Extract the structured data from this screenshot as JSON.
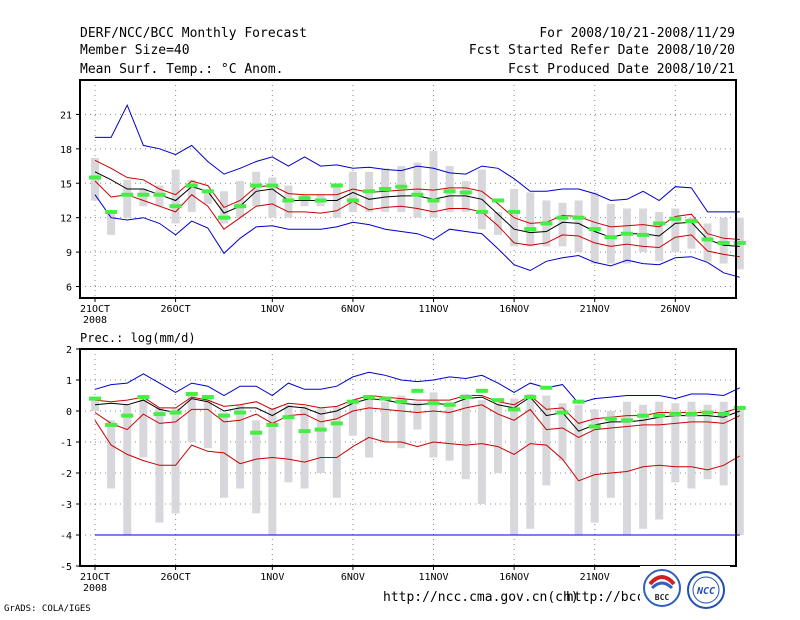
{
  "header": {
    "title": "DERF/NCC/BCC Monthly Forecast",
    "member_size": "Member Size=40",
    "variable": "Mean Surf. Temp.: °C Anom.",
    "period": "For 2008/10/21-2008/11/29",
    "started": "Fcst Started Refer Date 2008/10/20",
    "produced": "Fcst Produced Date 2008/10/21"
  },
  "footer": {
    "credit": "GrADS: COLA/IGES",
    "url1": "http://ncc.cma.gov.cn(ch)",
    "url2": "http://bcc.",
    "logo1_text": "BCC",
    "logo2_text": "NCC"
  },
  "colors": {
    "envelope": "#0000cc",
    "spread": "#cc0000",
    "mean": "#000000",
    "obs": "#44ee44",
    "bar": "#d8d8dc",
    "grid": "#888888"
  },
  "chart_data": [
    {
      "type": "line",
      "title": "Mean Surf. Temp.: °C Anom.",
      "xlabel": "",
      "ylabel": "",
      "x_ticks": [
        "21OCT",
        "26OCT",
        "1NOV",
        "6NOV",
        "11NOV",
        "16NOV",
        "21NOV",
        "26NOV"
      ],
      "x_tick_days": [
        0,
        5,
        11,
        16,
        21,
        26,
        31,
        36
      ],
      "x_sublabel": "2008",
      "ylim": [
        5,
        24
      ],
      "y_ticks": [
        6,
        9,
        12,
        15,
        18,
        21
      ],
      "grid": true,
      "series": [
        {
          "name": "max",
          "color": "#0000cc",
          "values": [
            19,
            19,
            21.8,
            18.3,
            18,
            17.5,
            18.3,
            16.9,
            15.8,
            16.3,
            16.9,
            17.3,
            16.5,
            17.3,
            16.5,
            16.6,
            16.3,
            16.4,
            16.2,
            16.1,
            16.5,
            16.3,
            15.9,
            15.8,
            16.5,
            16.3,
            15.4,
            14.3,
            14.3,
            14.5,
            14.5,
            14.1,
            13.5,
            13.6,
            14.3,
            13.5,
            14.7,
            14.6,
            12.5,
            12.5,
            12.5
          ]
        },
        {
          "name": "upper",
          "color": "#cc0000",
          "values": [
            17,
            16.3,
            15.5,
            15.3,
            14.5,
            14,
            15.2,
            14.8,
            12.9,
            13.5,
            14.7,
            14.8,
            14.1,
            14,
            14,
            14,
            14.5,
            14.2,
            14.3,
            14.4,
            14.5,
            14.4,
            14.6,
            14.6,
            14.3,
            13.2,
            12,
            11.5,
            11.6,
            12.2,
            12.1,
            11.6,
            11.2,
            11.3,
            11.4,
            11.2,
            12.1,
            12.3,
            10.6,
            10.2,
            10.1
          ]
        },
        {
          "name": "mean",
          "color": "#000000",
          "values": [
            16,
            15.3,
            14.5,
            14.5,
            14,
            13.5,
            14.7,
            14.3,
            12.4,
            13,
            14.3,
            14.5,
            13.5,
            13.5,
            13.5,
            13.5,
            14.2,
            13.6,
            13.8,
            13.9,
            13.9,
            13.6,
            13.9,
            13.9,
            13.6,
            12.3,
            11,
            10.7,
            10.8,
            11.6,
            11.5,
            10.8,
            10.3,
            10.6,
            10.6,
            10.4,
            11.5,
            11.6,
            10.1,
            9.6,
            9.5
          ]
        },
        {
          "name": "lower",
          "color": "#cc0000",
          "values": [
            15.2,
            13.8,
            14,
            13.5,
            13,
            12.5,
            14,
            13,
            11,
            12,
            13,
            13.2,
            12.5,
            12.5,
            12.4,
            12.6,
            13.4,
            12.7,
            12.9,
            13,
            12.8,
            12.5,
            12.8,
            12.8,
            12.5,
            11.3,
            9.8,
            9.6,
            9.8,
            10.5,
            10.4,
            9.8,
            9.5,
            9.7,
            9.5,
            9.4,
            10.3,
            10.5,
            9.1,
            8.8,
            8.6
          ]
        },
        {
          "name": "min",
          "color": "#0000cc",
          "values": [
            14,
            12,
            11.8,
            12,
            11.5,
            10.5,
            11.7,
            11.1,
            8.9,
            10.2,
            11.2,
            11.3,
            11,
            11,
            11,
            11.2,
            11.6,
            11.4,
            11,
            10.8,
            10.6,
            10.1,
            11,
            10.8,
            10.6,
            9.3,
            7.9,
            7.4,
            8.2,
            8.5,
            8.7,
            8.1,
            7.8,
            8.3,
            8,
            7.9,
            8.5,
            8.6,
            8.1,
            7.2,
            6.8
          ]
        }
      ],
      "observed": [
        15.5,
        12.5,
        14,
        14,
        14,
        13,
        14.8,
        14.3,
        12,
        13,
        14.8,
        14.8,
        13.5,
        13.7,
        13.5,
        14.8,
        13.5,
        14.3,
        14.5,
        14.7,
        14,
        13.5,
        14.3,
        14.2,
        12.5,
        13.5,
        12.5,
        11,
        11.5,
        12,
        12,
        11,
        10.3,
        10.6,
        10.5,
        11.5,
        11.9,
        11.7,
        10.1,
        9.8,
        9.8
      ],
      "box_high": [
        17.2,
        12.5,
        15.3,
        14.5,
        14.8,
        16.2,
        15.3,
        14.3,
        14.3,
        15.2,
        16,
        15.5,
        14.8,
        14,
        14,
        15,
        16,
        16,
        16.3,
        16.5,
        16.8,
        17.8,
        16.5,
        15.2,
        16.2,
        12.5,
        14.5,
        14.2,
        13.5,
        13.3,
        13.5,
        14.2,
        13.2,
        12.8,
        12.8,
        12.5,
        12.8,
        12,
        11.5,
        12,
        12
      ],
      "box_low": [
        13.5,
        10.5,
        12,
        13,
        13,
        11.5,
        12.5,
        13.2,
        11.5,
        12,
        13,
        12,
        12,
        13,
        13,
        12,
        12.5,
        12.5,
        12.5,
        12.5,
        12,
        12,
        12.5,
        12.5,
        11,
        10.5,
        9.5,
        9.5,
        9.5,
        9.5,
        9,
        8,
        8,
        8,
        9,
        8.2,
        9,
        9.3,
        8.2,
        8,
        7.5
      ]
    },
    {
      "type": "line",
      "title": "Prec.: log(mm/d)",
      "xlabel": "",
      "ylabel": "",
      "x_ticks": [
        "21OCT",
        "26OCT",
        "1NOV",
        "6NOV",
        "11NOV",
        "16NOV",
        "21NOV",
        "26NOV"
      ],
      "x_tick_days": [
        0,
        5,
        11,
        16,
        21,
        26,
        31,
        36
      ],
      "x_sublabel": "2008",
      "ylim": [
        -5,
        2
      ],
      "y_ticks": [
        -5,
        -4,
        -3,
        -2,
        -1,
        0,
        1,
        2
      ],
      "grid": true,
      "series": [
        {
          "name": "max",
          "color": "#0000cc",
          "values": [
            0.7,
            0.85,
            0.9,
            1.2,
            0.9,
            0.6,
            0.9,
            0.8,
            0.5,
            0.8,
            0.8,
            0.5,
            0.9,
            0.7,
            0.7,
            0.8,
            1.1,
            1.25,
            1.15,
            1,
            0.95,
            1,
            1.1,
            1.05,
            1.15,
            0.9,
            0.6,
            0.9,
            0.75,
            0.85,
            0.25,
            0.4,
            0.45,
            0.5,
            0.5,
            0.5,
            0.4,
            0.55,
            0.55,
            0.5,
            0.75
          ]
        },
        {
          "name": "upper",
          "color": "#cc0000",
          "values": [
            0.35,
            0.3,
            0.35,
            0.45,
            0.1,
            0.1,
            0.45,
            0.35,
            0.15,
            0.2,
            0.3,
            0.05,
            0.25,
            0.2,
            0.1,
            0.15,
            0.35,
            0.5,
            0.45,
            0.4,
            0.35,
            0.35,
            0.35,
            0.5,
            0.5,
            0.3,
            0.2,
            0.5,
            0.05,
            0.1,
            -0.4,
            -0.25,
            -0.2,
            -0.15,
            -0.15,
            -0.05,
            -0.05,
            -0.05,
            -0.05,
            -0.05,
            0.1
          ]
        },
        {
          "name": "mean",
          "color": "#000000",
          "values": [
            0.2,
            0.25,
            0.2,
            0.35,
            0.05,
            -0.05,
            0.4,
            0.3,
            0,
            0.1,
            0.1,
            -0.15,
            0.15,
            0.1,
            -0.1,
            0,
            0.25,
            0.4,
            0.35,
            0.25,
            0.2,
            0.25,
            0.2,
            0.4,
            0.45,
            0.2,
            0.1,
            0.45,
            -0.15,
            -0.05,
            -0.65,
            -0.45,
            -0.35,
            -0.35,
            -0.3,
            -0.2,
            -0.15,
            -0.15,
            -0.15,
            -0.2,
            0
          ]
        },
        {
          "name": "lower",
          "color": "#cc0000",
          "values": [
            -0.05,
            -0.4,
            -0.6,
            -0.1,
            -0.4,
            -0.35,
            0.05,
            0.05,
            -0.35,
            -0.3,
            -0.1,
            -0.4,
            -0.15,
            -0.1,
            -0.35,
            -0.25,
            0,
            0.1,
            0.05,
            0,
            -0.05,
            0,
            -0.05,
            0.1,
            0.2,
            -0.1,
            -0.3,
            0.05,
            -0.6,
            -0.55,
            -0.85,
            -0.6,
            -0.55,
            -0.5,
            -0.45,
            -0.45,
            -0.4,
            -0.35,
            -0.35,
            -0.4,
            -0.15
          ]
        },
        {
          "name": "min",
          "color": "#cc0000",
          "values": [
            -0.3,
            -1.1,
            -1.4,
            -1.6,
            -1.75,
            -1.75,
            -1.1,
            -1.3,
            -1.35,
            -1.7,
            -1.55,
            -1.5,
            -1.55,
            -1.65,
            -1.5,
            -1.5,
            -1.15,
            -0.85,
            -1,
            -1,
            -1.15,
            -1,
            -1.05,
            -1.1,
            -1.05,
            -1.15,
            -1.4,
            -1.05,
            -1.1,
            -1.55,
            -2.25,
            -2.05,
            -2,
            -1.95,
            -1.8,
            -1.75,
            -1.8,
            -1.8,
            -1.9,
            -1.75,
            -1.45
          ]
        },
        {
          "name": "floor",
          "color": "#0000cc",
          "values": [
            -4,
            -4,
            -4,
            -4,
            -4,
            -4,
            -4,
            -4,
            -4,
            -4,
            -4,
            -4,
            -4,
            -4,
            -4,
            -4,
            -4,
            -4,
            -4,
            -4,
            -4,
            -4,
            -4,
            -4,
            -4,
            -4,
            -4,
            -4,
            -4,
            -4,
            -4,
            -4,
            -4,
            -4,
            -4,
            -4,
            -4,
            -4,
            -4,
            -4,
            -4
          ]
        }
      ],
      "observed": [
        0.4,
        -0.45,
        -0.15,
        0.45,
        -0.1,
        -0.05,
        0.55,
        0.45,
        -0.15,
        -0.05,
        -0.7,
        -0.45,
        -0.2,
        -0.65,
        -0.6,
        -0.4,
        0.3,
        0.45,
        0.4,
        0.3,
        0.65,
        0.25,
        0.2,
        0.45,
        0.65,
        0.35,
        0.05,
        0.45,
        0.75,
        -0.05,
        0.3,
        -0.5,
        -0.25,
        -0.3,
        -0.15,
        -0.15,
        -0.1,
        -0.1,
        -0.05,
        -0.1,
        0.1
      ],
      "box_high": [
        0.4,
        -0.3,
        0.2,
        0.5,
        0.1,
        0.1,
        0.5,
        0.45,
        -0.05,
        0.2,
        -0.3,
        0.1,
        0.2,
        0.15,
        0.1,
        0.15,
        0.3,
        0.45,
        0.3,
        0.5,
        0.3,
        0.6,
        0.3,
        0.55,
        0.35,
        0.25,
        0.4,
        0.55,
        0.5,
        0.25,
        0.2,
        0.05,
        0,
        0.3,
        0.2,
        0.3,
        0.25,
        0.3,
        0.2,
        0.3,
        0.1
      ],
      "box_low": [
        0,
        -2.5,
        -4,
        -1.5,
        -3.6,
        -3.3,
        -1,
        -1.2,
        -2.8,
        -2.5,
        -3.3,
        -4,
        -2.3,
        -2.5,
        -2,
        -2.8,
        -0.8,
        -1.5,
        -1,
        -1.2,
        -0.6,
        -1.5,
        -1.6,
        -2.2,
        -3,
        -2,
        -4,
        -3.8,
        -2.4,
        -1.6,
        -4,
        -3.6,
        -2.8,
        -4,
        -3.8,
        -3.5,
        -2.3,
        -2.5,
        -2.2,
        -2.4,
        -4
      ]
    }
  ]
}
